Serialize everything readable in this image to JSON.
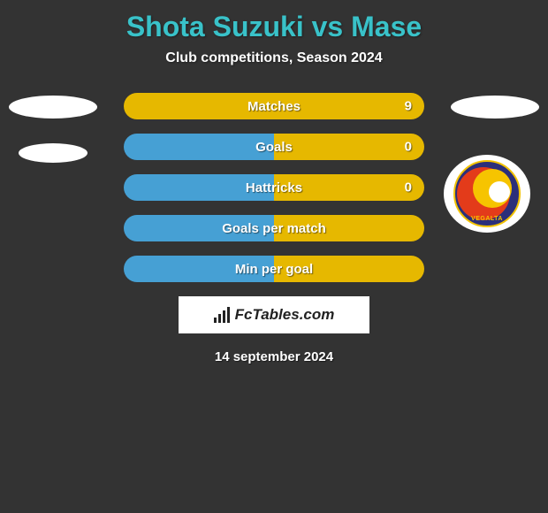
{
  "title": "Shota Suzuki vs Mase",
  "subtitle": "Club competitions, Season 2024",
  "date_text": "14 september 2024",
  "branding": "FcTables.com",
  "colors": {
    "bg": "#333333",
    "title": "#39c2c9",
    "left_bar": "#46a0d4",
    "right_bar": "#e6b800",
    "text": "#ffffff"
  },
  "players": {
    "left": {
      "name": "Shota Suzuki"
    },
    "right": {
      "name": "Mase",
      "badge_text": "VEGALTA"
    }
  },
  "rows": [
    {
      "label": "Matches",
      "left": "",
      "right": "9",
      "leftPct": 0,
      "rightPct": 100
    },
    {
      "label": "Goals",
      "left": "",
      "right": "0",
      "leftPct": 50,
      "rightPct": 50
    },
    {
      "label": "Hattricks",
      "left": "",
      "right": "0",
      "leftPct": 50,
      "rightPct": 50
    },
    {
      "label": "Goals per match",
      "left": "",
      "right": "",
      "leftPct": 50,
      "rightPct": 50
    },
    {
      "label": "Min per goal",
      "left": "",
      "right": "",
      "leftPct": 50,
      "rightPct": 50
    }
  ]
}
